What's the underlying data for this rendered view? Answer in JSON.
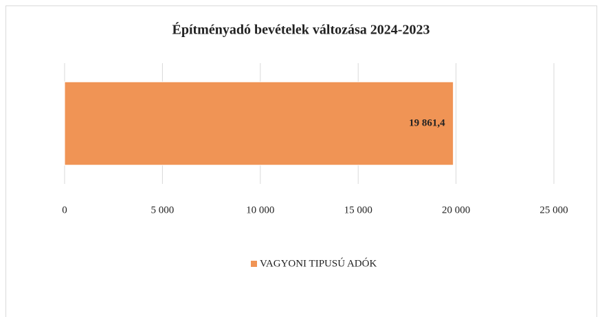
{
  "chart_data": {
    "type": "bar",
    "orientation": "horizontal",
    "title": "Építményadó bevételek változása 2024-2023",
    "categories": [
      null
    ],
    "series": [
      {
        "name": "VAGYONI TIPUSÚ ADÓK",
        "color": "#f09455",
        "values": [
          19861.4
        ],
        "value_labels": [
          "19 861,4"
        ]
      }
    ],
    "xlim": [
      0,
      25000
    ],
    "xticks": [
      0,
      {
        "value": 5000,
        "label": "5 000"
      },
      {
        "value": 10000,
        "label": "10 000"
      },
      {
        "value": 15000,
        "label": "15 000"
      },
      {
        "value": 20000,
        "label": "20 000"
      },
      {
        "value": 25000,
        "label": "25 000"
      }
    ],
    "grid": true,
    "legend": "bottom"
  }
}
